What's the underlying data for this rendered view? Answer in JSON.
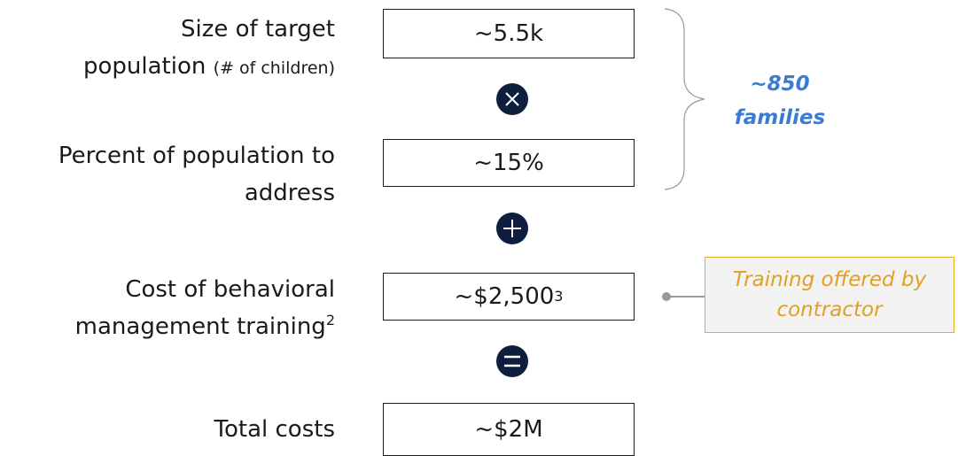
{
  "rows": [
    {
      "label_lines": [
        "Size of target",
        "population"
      ],
      "note": "(# of children)",
      "value": "~5.5k"
    },
    {
      "label_lines": [
        "Percent of population to",
        "address"
      ],
      "value": "~15%"
    },
    {
      "label_lines": [
        "Cost of behavioral",
        "management training"
      ],
      "label_sup": "2",
      "value": "~$2,500",
      "value_sup": "3"
    },
    {
      "label_lines": [
        "Total costs"
      ],
      "value": "~$2M"
    }
  ],
  "annotation": {
    "lines": [
      "~850",
      "families"
    ]
  },
  "callout": {
    "lines": [
      "Training offered by",
      "contractor"
    ]
  }
}
